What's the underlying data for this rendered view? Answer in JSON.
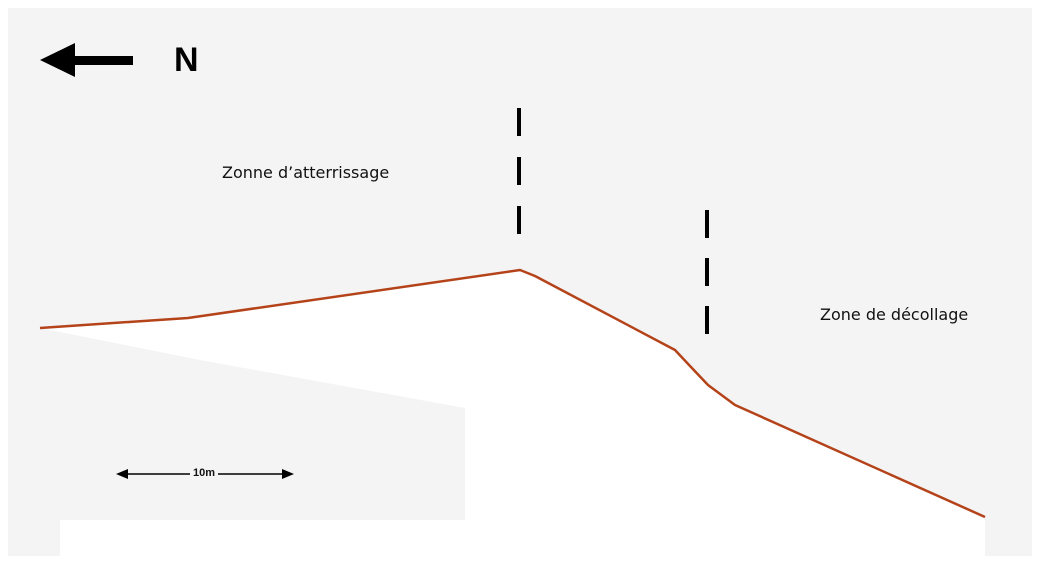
{
  "north": {
    "label": "N",
    "icon": "arrow-left-icon"
  },
  "zones": {
    "landing_label": "Zonne d’atterrissage",
    "takeoff_label": "Zone de décollage"
  },
  "scale": {
    "label": "10m",
    "icon": "double-arrow-icon"
  },
  "colors": {
    "profile_line": "#b5431a",
    "paper": "#f4f4f4",
    "ink": "#000000"
  }
}
